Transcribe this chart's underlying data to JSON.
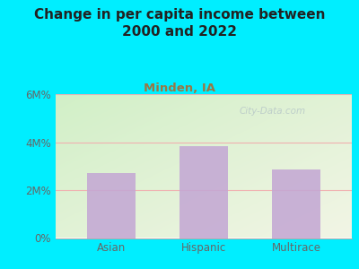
{
  "title": "Change in per capita income between\n2000 and 2022",
  "subtitle": "Minden, IA",
  "categories": [
    "Asian",
    "Hispanic",
    "Multirace"
  ],
  "values": [
    2.7,
    3.85,
    2.85
  ],
  "ylim": [
    0,
    6
  ],
  "yticks": [
    0,
    2,
    4,
    6
  ],
  "ytick_labels": [
    "0%",
    "2M%",
    "4M%",
    "6M%"
  ],
  "bar_color": "#c4a8d4",
  "background_outer": "#00eeff",
  "background_inner_top_left": "#d8eecc",
  "background_inner_right": "#f0f0e8",
  "title_color": "#222222",
  "subtitle_color": "#997744",
  "tick_label_color": "#666666",
  "grid_color": "#f0b0b0",
  "watermark": "City-Data.com",
  "title_fontsize": 11,
  "subtitle_fontsize": 9.5,
  "tick_fontsize": 8.5
}
